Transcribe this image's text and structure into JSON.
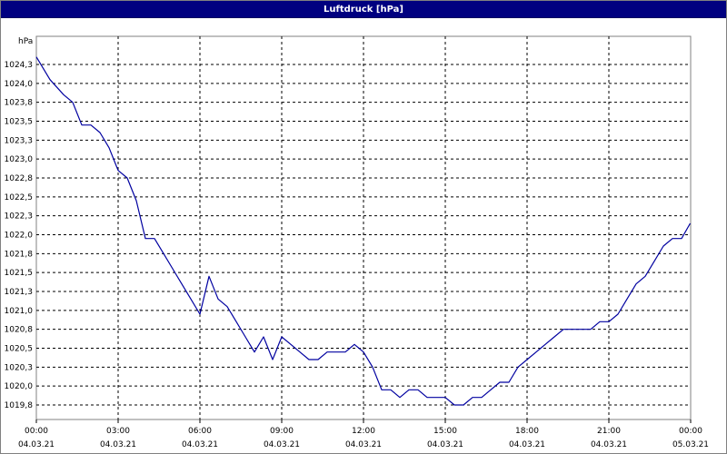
{
  "window": {
    "title": "Luftdruck [hPa]"
  },
  "chart_data": {
    "type": "line",
    "title": "Luftdruck [hPa]",
    "ylabel": "hPa",
    "xlabel": "",
    "grid": true,
    "ylim": [
      1019.7,
      1024.6
    ],
    "y_ticks": [
      "1024,3",
      "1024,0",
      "1023,8",
      "1023,5",
      "1023,3",
      "1023,0",
      "1022,8",
      "1022,5",
      "1022,3",
      "1022,0",
      "1021,8",
      "1021,5",
      "1021,3",
      "1021,0",
      "1020,8",
      "1020,5",
      "1020,3",
      "1020,0",
      "1019,8"
    ],
    "x_ticks": [
      {
        "time": "00:00",
        "date": "04.03.21"
      },
      {
        "time": "03:00",
        "date": "04.03.21"
      },
      {
        "time": "06:00",
        "date": "04.03.21"
      },
      {
        "time": "09:00",
        "date": "04.03.21"
      },
      {
        "time": "12:00",
        "date": "04.03.21"
      },
      {
        "time": "15:00",
        "date": "04.03.21"
      },
      {
        "time": "18:00",
        "date": "04.03.21"
      },
      {
        "time": "21:00",
        "date": "04.03.21"
      },
      {
        "time": "00:00",
        "date": "05.03.21"
      }
    ],
    "series": [
      {
        "color": "#0000a0",
        "x": [
          "00:00",
          "00:30",
          "01:00",
          "01:20",
          "01:40",
          "02:00",
          "02:20",
          "02:40",
          "03:00",
          "03:20",
          "03:40",
          "04:00",
          "04:20",
          "04:40",
          "05:00",
          "05:20",
          "05:40",
          "06:00",
          "06:20",
          "06:40",
          "07:00",
          "07:20",
          "07:40",
          "08:00",
          "08:20",
          "08:40",
          "09:00",
          "09:20",
          "09:40",
          "10:00",
          "10:20",
          "10:40",
          "11:00",
          "11:20",
          "11:40",
          "12:00",
          "12:20",
          "12:40",
          "13:00",
          "13:20",
          "13:40",
          "14:00",
          "14:20",
          "14:40",
          "15:00",
          "15:20",
          "15:40",
          "16:00",
          "16:20",
          "16:40",
          "17:00",
          "17:20",
          "17:40",
          "18:00",
          "18:20",
          "18:40",
          "19:00",
          "19:20",
          "19:40",
          "20:00",
          "20:20",
          "20:40",
          "21:00",
          "21:20",
          "21:40",
          "22:00",
          "22:20",
          "22:40",
          "23:00",
          "23:20",
          "23:40",
          "23:59"
        ],
        "values": [
          1024.4,
          1024.1,
          1023.9,
          1023.8,
          1023.5,
          1023.5,
          1023.4,
          1023.2,
          1022.9,
          1022.8,
          1022.5,
          1022.0,
          1022.0,
          1021.8,
          1021.6,
          1021.4,
          1021.2,
          1021.0,
          1021.5,
          1021.2,
          1021.1,
          1020.9,
          1020.7,
          1020.5,
          1020.7,
          1020.4,
          1020.7,
          1020.6,
          1020.5,
          1020.4,
          1020.4,
          1020.5,
          1020.5,
          1020.5,
          1020.6,
          1020.5,
          1020.3,
          1020.0,
          1020.0,
          1019.9,
          1020.0,
          1020.0,
          1019.9,
          1019.9,
          1019.9,
          1019.8,
          1019.8,
          1019.9,
          1019.9,
          1020.0,
          1020.1,
          1020.1,
          1020.3,
          1020.4,
          1020.5,
          1020.6,
          1020.7,
          1020.8,
          1020.8,
          1020.8,
          1020.8,
          1020.9,
          1020.9,
          1021.0,
          1021.2,
          1021.4,
          1021.5,
          1021.7,
          1021.9,
          1022.0,
          1022.0,
          1022.2
        ]
      }
    ]
  }
}
